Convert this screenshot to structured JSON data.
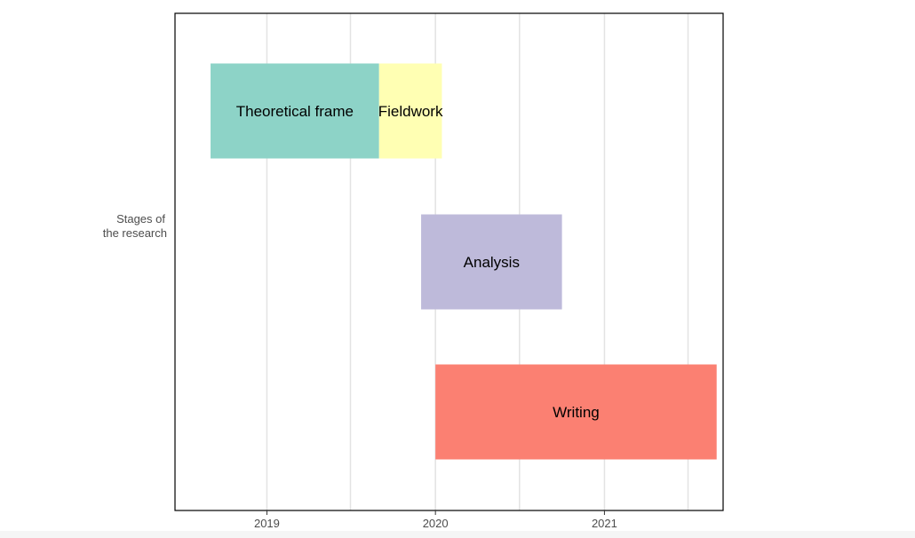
{
  "chart_data": {
    "type": "gantt",
    "title": "",
    "xlabel": "",
    "ylabel_lines": [
      "Stages of",
      "the research"
    ],
    "x_axis": {
      "type": "date",
      "min": "2018-06-16",
      "max": "2021-09-15",
      "ticks": [
        "2019-01-01",
        "2020-01-01",
        "2021-01-01"
      ],
      "tick_labels": [
        "2019",
        "2020",
        "2021"
      ],
      "minor_gridlines": [
        "2019-07-01",
        "2020-07-01",
        "2021-07-01"
      ]
    },
    "grid": "vertical-only",
    "tasks": [
      {
        "name": "Theoretical frame",
        "start": "2018-09-01",
        "end": "2019-09-01",
        "row": 1,
        "color": "#8DD3C7"
      },
      {
        "name": "Fieldwork",
        "start": "2019-09-01",
        "end": "2020-01-15",
        "row": 1,
        "color": "#FFFFB3"
      },
      {
        "name": "Analysis",
        "start": "2019-12-01",
        "end": "2020-10-01",
        "row": 2,
        "color": "#BEBADA"
      },
      {
        "name": "Writing",
        "start": "2020-01-01",
        "end": "2021-09-01",
        "row": 3,
        "color": "#FB8072"
      }
    ],
    "rows": 3
  }
}
